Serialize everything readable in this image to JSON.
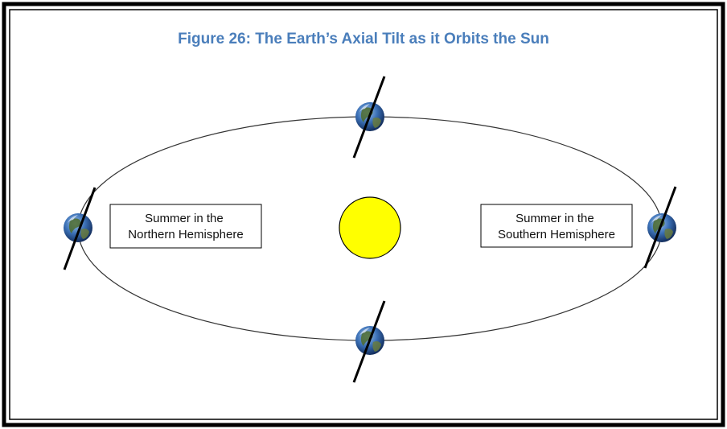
{
  "title": "Figure 26: The Earth’s Axial Tilt as it Orbits the Sun",
  "labels": [
    {
      "lines": [
        "Summer in the",
        "Northern Hemisphere"
      ]
    },
    {
      "lines": [
        "Summer in the",
        "Southern Hemisphere"
      ]
    }
  ]
}
